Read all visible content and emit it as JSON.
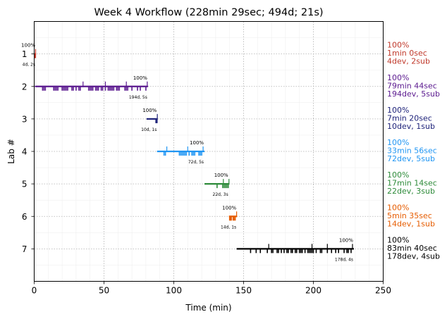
{
  "chart_data": {
    "type": "timeline",
    "title": "Week 4 Workflow (228min 29sec; 494d; 21s)",
    "xlabel": "Time (min)",
    "ylabel": "Lab #",
    "xlim": [
      0,
      250
    ],
    "ylim": [
      0,
      8
    ],
    "y_inverted": true,
    "x_ticks": [
      0,
      50,
      100,
      150,
      200,
      250
    ],
    "y_ticks": [
      1,
      2,
      3,
      4,
      5,
      6,
      7
    ],
    "grid": true,
    "labs": [
      {
        "lab": 1,
        "color": "#c0392b",
        "start": 0.3,
        "end": 1.3,
        "pct_label": "100%",
        "count_label": "4d, 2s",
        "side": [
          "100%",
          "1min 0sec",
          "4dev, 2sub"
        ],
        "down_ticks": [
          0.6,
          0.9
        ],
        "up_ticks": [
          1.0
        ]
      },
      {
        "lab": 2,
        "color": "#5b1a8f",
        "start": 0.5,
        "end": 81.5,
        "pct_label": "100%",
        "count_label": "194d, 5s",
        "side": [
          "100%",
          "79min 44sec",
          "194dev, 5sub"
        ],
        "down_ticks": [
          6,
          7,
          8,
          14,
          15,
          16,
          17,
          20,
          21,
          22,
          23,
          24,
          27,
          28,
          30,
          32,
          33,
          39,
          40,
          41,
          42,
          44,
          45,
          46,
          48,
          49,
          51,
          53,
          54,
          55,
          56,
          57,
          59,
          60,
          61,
          65,
          66,
          67,
          70,
          74,
          76,
          80
        ],
        "up_ticks": [
          35,
          51,
          66,
          81
        ]
      },
      {
        "lab": 3,
        "color": "#1f237a",
        "start": 80.5,
        "end": 88.3,
        "pct_label": "100%",
        "count_label": "10d, 1s",
        "side": [
          "100%",
          "7min 20sec",
          "10dev, 1sub"
        ],
        "down_ticks": [
          87.2,
          87.6,
          88.0
        ],
        "up_ticks": [
          88.2
        ]
      },
      {
        "lab": 4,
        "color": "#2196f3",
        "start": 88,
        "end": 122,
        "pct_label": "100%",
        "count_label": "72d, 5s",
        "side": [
          "100%",
          "33min 56sec",
          "72dev, 5sub"
        ],
        "down_ticks": [
          93,
          94,
          104,
          105,
          106,
          107,
          108,
          109,
          111,
          113,
          114,
          115,
          118,
          119,
          120
        ],
        "up_ticks": [
          95,
          110,
          121
        ]
      },
      {
        "lab": 5,
        "color": "#2e8b3a",
        "start": 122,
        "end": 139.5,
        "pct_label": "100%",
        "count_label": "22d, 3s",
        "side": [
          "100%",
          "17min 14sec",
          "22dev, 3sub"
        ],
        "down_ticks": [
          131,
          135,
          136,
          137,
          138,
          139
        ],
        "up_ticks": [
          135.5,
          139.5
        ]
      },
      {
        "lab": 6,
        "color": "#e65c00",
        "start": 139.5,
        "end": 145.3,
        "pct_label": "100%",
        "count_label": "14d, 1s",
        "side": [
          "100%",
          "5min 35sec",
          "14dev, 1sub"
        ],
        "down_ticks": [
          140,
          140.6,
          141.2,
          142.5,
          143.2,
          144
        ],
        "up_ticks": [
          145
        ]
      },
      {
        "lab": 7,
        "color": "#000000",
        "start": 145,
        "end": 229,
        "pct_label": "100%",
        "count_label": "178d, 4s",
        "side": [
          "100%",
          "83min 40sec",
          "178dev, 4sub"
        ],
        "down_ticks": [
          155,
          159,
          162,
          167,
          170,
          171,
          174,
          175,
          177,
          179,
          181,
          182,
          184,
          185,
          187,
          188,
          190,
          191,
          192,
          194,
          196,
          197,
          198,
          199,
          200,
          202,
          205,
          206,
          210,
          213,
          216,
          218,
          222,
          224,
          225,
          227
        ],
        "up_ticks": [
          168,
          199,
          210,
          228
        ]
      }
    ]
  }
}
